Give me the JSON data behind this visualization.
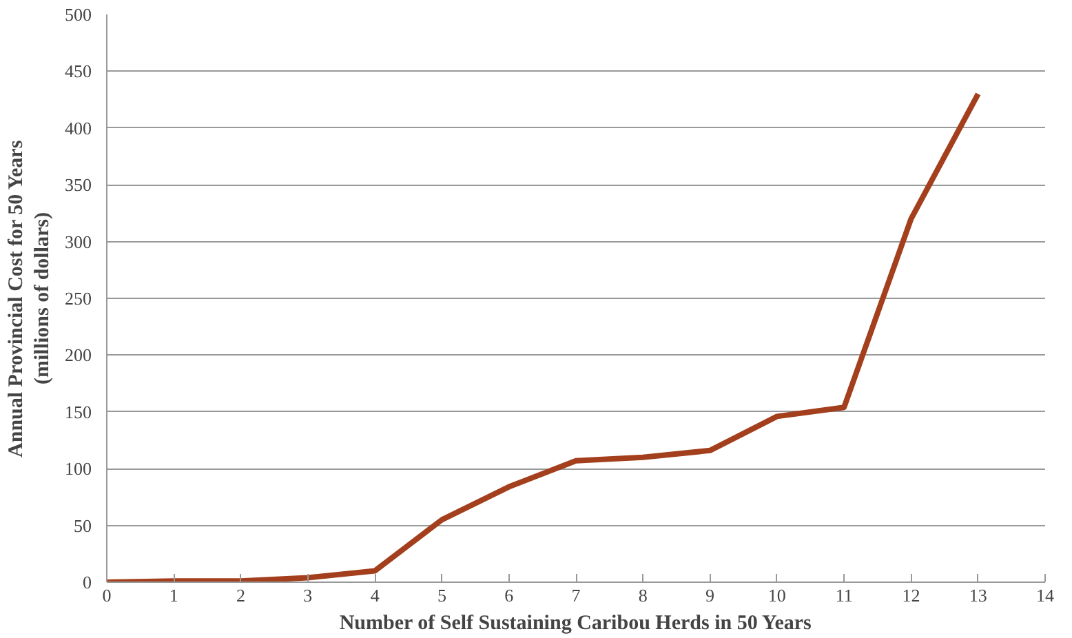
{
  "chart_data": {
    "type": "line",
    "xlabel": "Number of Self Sustaining Caribou Herds in 50 Years",
    "ylabel": "Annual Provincial Cost for 50 Years\n(millions of dollars)",
    "x": [
      0,
      1,
      2,
      3,
      4,
      5,
      6,
      7,
      8,
      9,
      10,
      11,
      12,
      13
    ],
    "series": [
      {
        "color": "#a33f1c",
        "values": [
          0,
          1,
          1,
          4,
          10,
          55,
          84,
          107,
          110,
          116,
          146,
          154,
          320,
          430
        ]
      }
    ],
    "xlim": [
      0,
      14
    ],
    "xticks": [
      0,
      1,
      2,
      3,
      4,
      5,
      6,
      7,
      8,
      9,
      10,
      11,
      12,
      13,
      14
    ],
    "ylim": [
      0,
      500
    ],
    "yticks": [
      0,
      50,
      100,
      150,
      200,
      250,
      300,
      350,
      400,
      450,
      500
    ],
    "grid": "y",
    "marker": "none",
    "line_style": "solid"
  }
}
